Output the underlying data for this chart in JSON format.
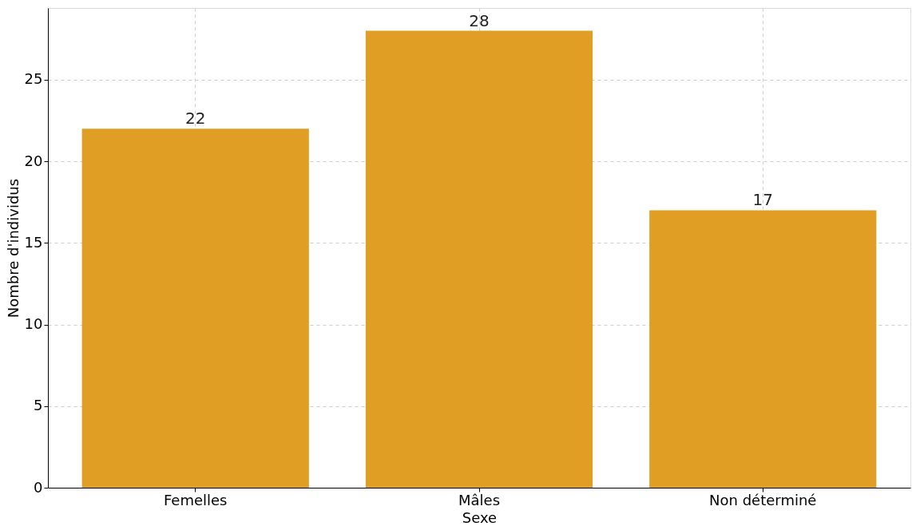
{
  "chart_data": {
    "type": "bar",
    "xlabel": "Sexe",
    "ylabel": "Nombre d'individus",
    "categories": [
      "Femelles",
      "Mâles",
      "Non déterminé"
    ],
    "values": [
      22,
      28,
      17
    ],
    "color": "#e09f24",
    "ylim": [
      0,
      29.4
    ],
    "yticks": [
      0,
      5,
      10,
      15,
      20,
      25
    ],
    "grid": true,
    "data_labels": true
  }
}
